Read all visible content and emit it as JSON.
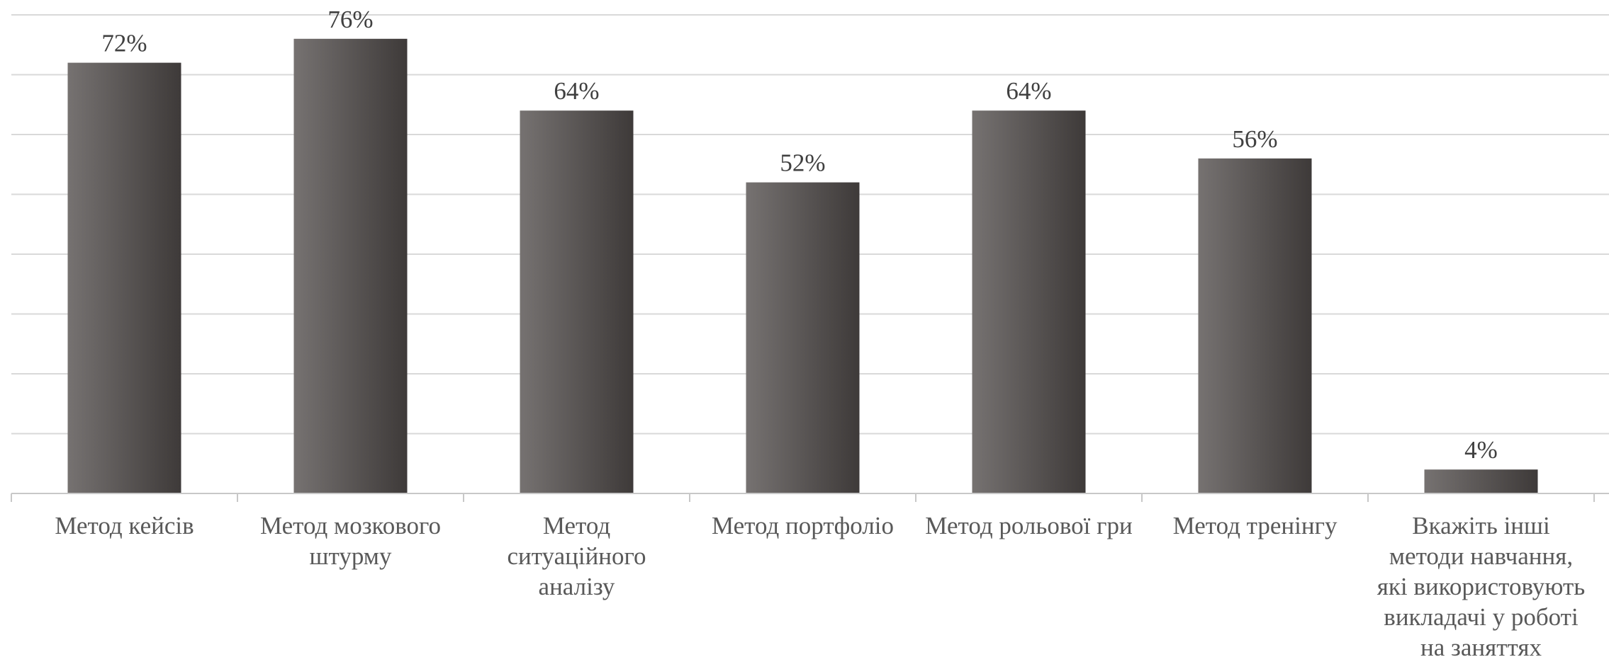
{
  "chart_data": {
    "type": "bar",
    "title": "",
    "xlabel": "",
    "ylabel": "",
    "ylim": [
      0,
      80
    ],
    "grid": true,
    "legend": "none",
    "categories": [
      "Метод кейсів",
      "Метод мозкового штурму",
      "Метод ситуаційного аналізу",
      "Метод портфоліо",
      "Метод рольової гри",
      "Метод тренінгу",
      "Вкажіть інші методи навчання, які використовують викладачі у роботі на заняттях"
    ],
    "category_lines": [
      [
        "Метод кейсів"
      ],
      [
        "Метод мозкового",
        "штурму"
      ],
      [
        "Метод",
        "ситуаційного",
        "аналізу"
      ],
      [
        "Метод портфоліо"
      ],
      [
        "Метод рольової гри"
      ],
      [
        "Метод тренінгу"
      ],
      [
        "Вкажіть інші",
        "методи навчання,",
        "які використовують",
        "викладачі у роботі",
        "на заняттях"
      ]
    ],
    "values": [
      72,
      76,
      64,
      52,
      64,
      56,
      4
    ],
    "data_labels": [
      "72%",
      "76%",
      "64%",
      "52%",
      "64%",
      "56%",
      "4%"
    ],
    "colors": {
      "bar_light": "#767271",
      "bar_dark": "#3e3a39",
      "grid": "#d9d9d9",
      "axis": "#c8c8c8",
      "label_text": "#404040",
      "category_text": "#595959"
    }
  }
}
